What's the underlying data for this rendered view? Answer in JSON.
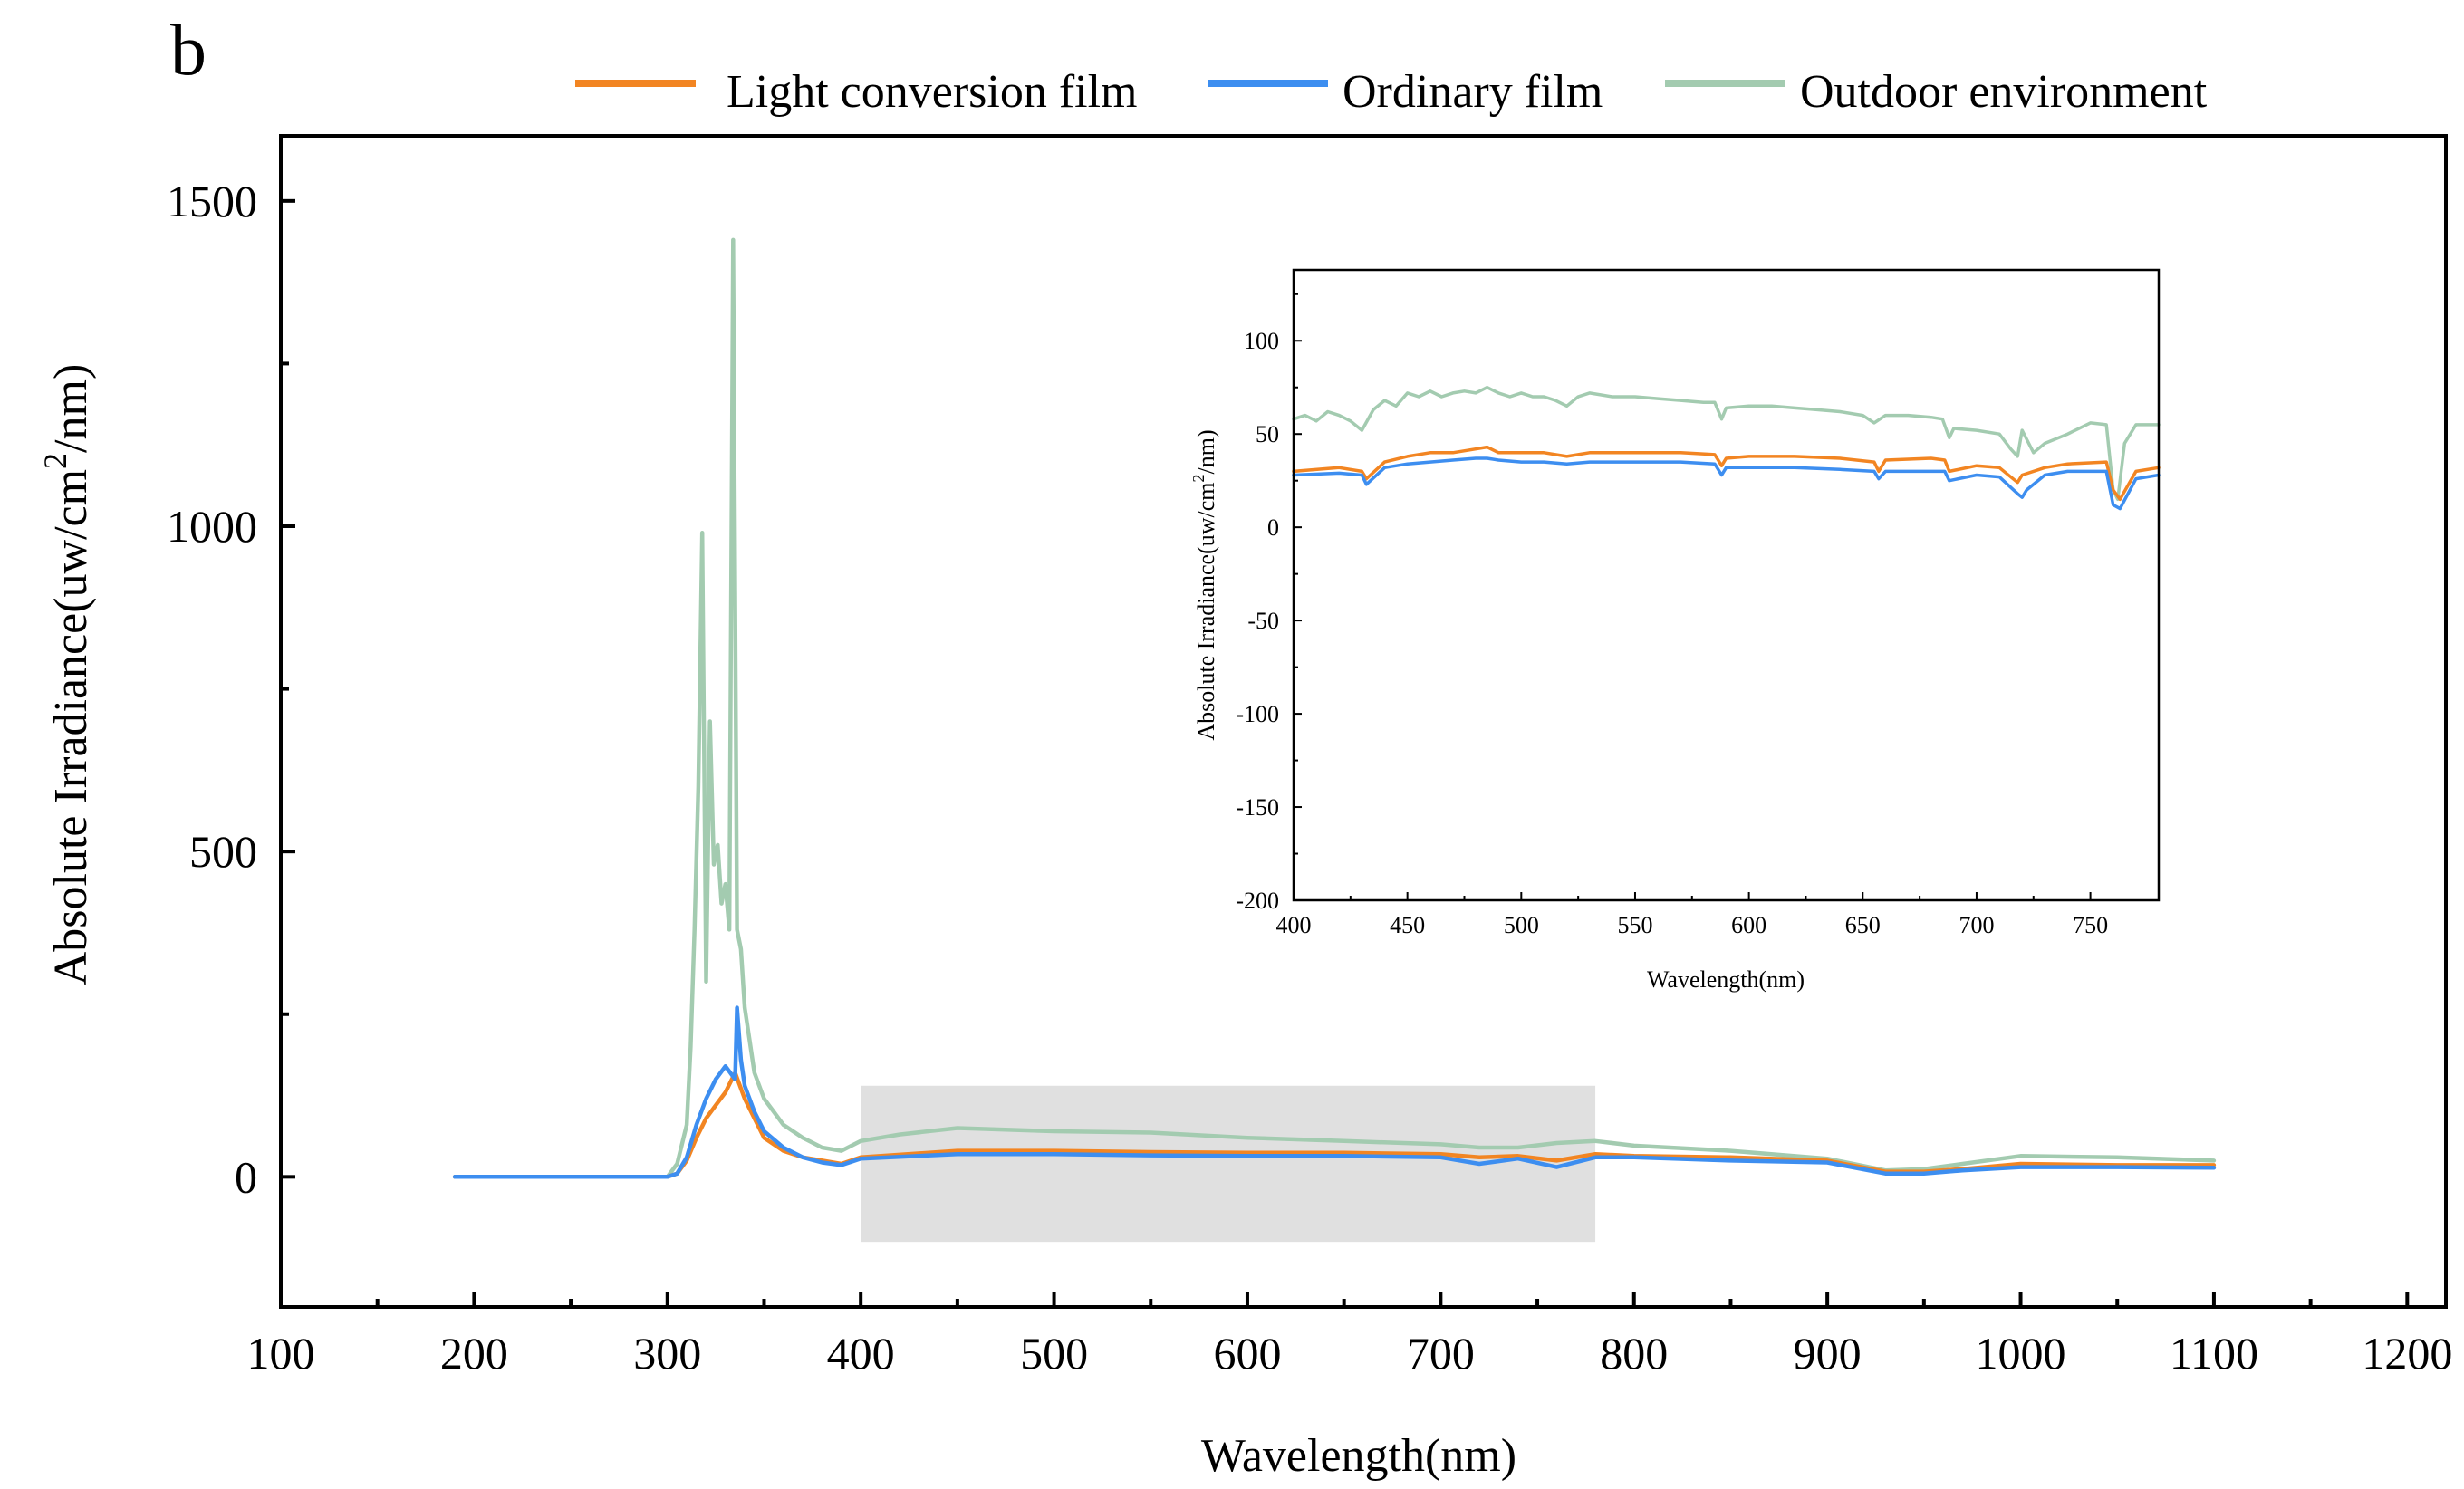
{
  "panel_label": "b",
  "colors": {
    "light_conversion": "#F28522",
    "ordinary": "#3D8EF0",
    "outdoor": "#A3CBB0",
    "highlight": "#E0E0E0"
  },
  "chart_data": [
    {
      "type": "line",
      "name": "main",
      "xlabel": "Wavelength(nm)",
      "ylabel_parts": [
        "Absolute Irradiance(uw/cm",
        "2",
        "/nm)"
      ],
      "xlim": [
        100,
        1220
      ],
      "ylim": [
        -200,
        1600
      ],
      "xticks": [
        100,
        200,
        300,
        400,
        500,
        600,
        700,
        800,
        900,
        1000,
        1100,
        1200
      ],
      "yticks": [
        0,
        500,
        1000,
        1500
      ],
      "highlight_region": {
        "x": [
          400,
          780
        ],
        "y": [
          -100,
          140
        ]
      },
      "legend": [
        {
          "label": "Light conversion film",
          "color": "#F28522"
        },
        {
          "label": "Ordinary film",
          "color": "#3D8EF0"
        },
        {
          "label": "Outdoor environment",
          "color": "#A3CBB0"
        }
      ],
      "series": [
        {
          "name": "Outdoor environment",
          "color": "#A3CBB0",
          "x": [
            190,
            300,
            305,
            310,
            312,
            314,
            316,
            318,
            320,
            322,
            324,
            326,
            328,
            330,
            332,
            334,
            335,
            336,
            338,
            340,
            342,
            345,
            350,
            355,
            360,
            370,
            380,
            390,
            400,
            420,
            450,
            500,
            550,
            600,
            650,
            700,
            720,
            740,
            760,
            780,
            800,
            850,
            900,
            930,
            950,
            970,
            1000,
            1050,
            1100
          ],
          "y": [
            0,
            0,
            20,
            80,
            200,
            380,
            600,
            990,
            300,
            700,
            480,
            510,
            420,
            450,
            380,
            1440,
            900,
            380,
            350,
            260,
            220,
            160,
            120,
            100,
            80,
            60,
            45,
            40,
            55,
            65,
            75,
            70,
            68,
            60,
            55,
            50,
            45,
            45,
            52,
            55,
            48,
            40,
            28,
            10,
            12,
            20,
            32,
            30,
            25
          ]
        },
        {
          "name": "Light conversion film",
          "color": "#F28522",
          "x": [
            190,
            300,
            305,
            310,
            315,
            320,
            325,
            330,
            335,
            340,
            345,
            350,
            360,
            370,
            380,
            390,
            400,
            450,
            500,
            550,
            600,
            650,
            700,
            720,
            740,
            760,
            780,
            800,
            850,
            900,
            930,
            950,
            970,
            1000,
            1050,
            1100
          ],
          "y": [
            0,
            0,
            5,
            25,
            60,
            90,
            110,
            130,
            160,
            120,
            90,
            60,
            40,
            30,
            25,
            20,
            30,
            40,
            40,
            38,
            37,
            37,
            35,
            30,
            32,
            25,
            35,
            32,
            30,
            25,
            8,
            8,
            12,
            20,
            18,
            18
          ]
        },
        {
          "name": "Ordinary film",
          "color": "#3D8EF0",
          "x": [
            190,
            300,
            305,
            310,
            315,
            320,
            325,
            330,
            335,
            336,
            338,
            340,
            345,
            350,
            360,
            370,
            380,
            390,
            400,
            450,
            500,
            550,
            600,
            650,
            700,
            720,
            740,
            760,
            780,
            800,
            850,
            900,
            930,
            950,
            970,
            1000,
            1050,
            1100
          ],
          "y": [
            0,
            0,
            5,
            30,
            80,
            120,
            150,
            170,
            150,
            260,
            180,
            140,
            100,
            70,
            45,
            30,
            22,
            18,
            28,
            35,
            35,
            33,
            32,
            32,
            30,
            20,
            28,
            15,
            30,
            30,
            25,
            22,
            5,
            5,
            10,
            15,
            15,
            14
          ]
        }
      ]
    },
    {
      "type": "line",
      "name": "inset",
      "xlabel": "Wavelength(nm)",
      "ylabel_parts": [
        "Absolute Irradiance(uw/cm",
        "2",
        "/nm)"
      ],
      "xlim": [
        400,
        780
      ],
      "ylim": [
        -200,
        138
      ],
      "xticks": [
        400,
        450,
        500,
        550,
        600,
        650,
        700,
        750
      ],
      "yticks": [
        -200,
        -150,
        -100,
        -50,
        0,
        50,
        100
      ],
      "series": [
        {
          "name": "Outdoor environment",
          "color": "#A3CBB0",
          "x": [
            400,
            405,
            410,
            415,
            420,
            425,
            430,
            435,
            440,
            445,
            450,
            455,
            460,
            465,
            470,
            475,
            480,
            485,
            490,
            495,
            500,
            505,
            510,
            515,
            520,
            525,
            530,
            540,
            550,
            560,
            570,
            580,
            585,
            588,
            590,
            600,
            610,
            620,
            630,
            640,
            650,
            655,
            660,
            670,
            680,
            685,
            688,
            690,
            700,
            710,
            715,
            718,
            720,
            725,
            730,
            740,
            750,
            757,
            760,
            762,
            765,
            770,
            775,
            780
          ],
          "y": [
            58,
            60,
            57,
            62,
            60,
            57,
            52,
            63,
            68,
            65,
            72,
            70,
            73,
            70,
            72,
            73,
            72,
            75,
            72,
            70,
            72,
            70,
            70,
            68,
            65,
            70,
            72,
            70,
            70,
            69,
            68,
            67,
            67,
            58,
            64,
            65,
            65,
            64,
            63,
            62,
            60,
            56,
            60,
            60,
            59,
            58,
            48,
            53,
            52,
            50,
            42,
            38,
            52,
            40,
            45,
            50,
            56,
            55,
            20,
            15,
            45,
            55,
            55,
            55
          ]
        },
        {
          "name": "Light conversion film",
          "color": "#F28522",
          "x": [
            400,
            420,
            430,
            432,
            440,
            450,
            460,
            470,
            480,
            485,
            490,
            500,
            510,
            520,
            530,
            550,
            570,
            585,
            588,
            590,
            600,
            620,
            640,
            655,
            657,
            660,
            680,
            686,
            688,
            700,
            710,
            718,
            720,
            730,
            740,
            757,
            760,
            763,
            770,
            780
          ],
          "y": [
            30,
            32,
            30,
            26,
            35,
            38,
            40,
            40,
            42,
            43,
            40,
            40,
            40,
            38,
            40,
            40,
            40,
            39,
            33,
            37,
            38,
            38,
            37,
            35,
            30,
            36,
            37,
            36,
            30,
            33,
            32,
            24,
            28,
            32,
            34,
            35,
            20,
            15,
            30,
            32
          ]
        },
        {
          "name": "Ordinary film",
          "color": "#3D8EF0",
          "x": [
            400,
            420,
            430,
            432,
            440,
            450,
            460,
            470,
            480,
            485,
            490,
            500,
            510,
            520,
            530,
            550,
            570,
            585,
            588,
            590,
            600,
            620,
            640,
            655,
            657,
            660,
            680,
            686,
            688,
            700,
            710,
            718,
            720,
            722,
            730,
            740,
            757,
            760,
            763,
            770,
            780
          ],
          "y": [
            28,
            29,
            28,
            23,
            32,
            34,
            35,
            36,
            37,
            37,
            36,
            35,
            35,
            34,
            35,
            35,
            35,
            34,
            28,
            32,
            32,
            32,
            31,
            30,
            26,
            30,
            30,
            30,
            25,
            28,
            27,
            18,
            16,
            20,
            28,
            30,
            30,
            12,
            10,
            26,
            28
          ]
        }
      ]
    }
  ]
}
